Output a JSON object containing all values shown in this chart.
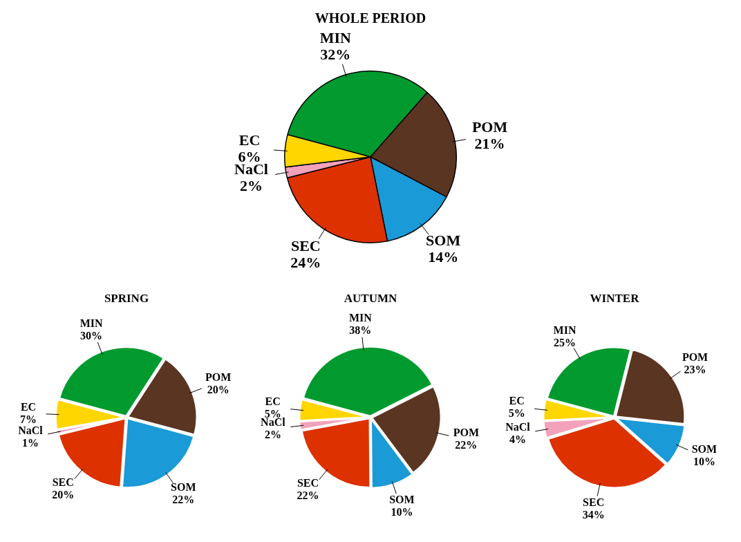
{
  "chart_data": [
    {
      "type": "pie",
      "title": "WHOLE PERIOD",
      "categories": [
        "MIN",
        "POM",
        "SOM",
        "SEC",
        "NaCl",
        "EC"
      ],
      "values": [
        32,
        21,
        14,
        24,
        2,
        6
      ],
      "value_labels": [
        "32%",
        "21%",
        "14%",
        "24%",
        "2%",
        "6%"
      ],
      "colors": [
        "#009a2e",
        "#5a3522",
        "#1a9ad6",
        "#dd3100",
        "#f3a2bb",
        "#ffd600"
      ]
    },
    {
      "type": "pie",
      "title": "SPRING",
      "categories": [
        "MIN",
        "POM",
        "SOM",
        "SEC",
        "NaCl",
        "EC"
      ],
      "values": [
        30,
        20,
        22,
        20,
        1,
        7
      ],
      "value_labels": [
        "30%",
        "20%",
        "22%",
        "20%",
        "1%",
        "7%"
      ],
      "colors": [
        "#009a2e",
        "#5a3522",
        "#1a9ad6",
        "#dd3100",
        "#f3a2bb",
        "#ffd600"
      ]
    },
    {
      "type": "pie",
      "title": "AUTUMN",
      "categories": [
        "MIN",
        "POM",
        "SOM",
        "SEC",
        "NaCl",
        "EC"
      ],
      "values": [
        38,
        22,
        10,
        22,
        2,
        5
      ],
      "value_labels": [
        "38%",
        "22%",
        "10%",
        "22%",
        "2%",
        "5%"
      ],
      "colors": [
        "#009a2e",
        "#5a3522",
        "#1a9ad6",
        "#dd3100",
        "#f3a2bb",
        "#ffd600"
      ]
    },
    {
      "type": "pie",
      "title": "WINTER",
      "categories": [
        "MIN",
        "POM",
        "SOM",
        "SEC",
        "NaCl",
        "EC"
      ],
      "values": [
        25,
        23,
        10,
        34,
        4,
        5
      ],
      "value_labels": [
        "25%",
        "23%",
        "10%",
        "34%",
        "4%",
        "5%"
      ],
      "colors": [
        "#009a2e",
        "#5a3522",
        "#1a9ad6",
        "#dd3100",
        "#f3a2bb",
        "#ffd600"
      ]
    }
  ]
}
